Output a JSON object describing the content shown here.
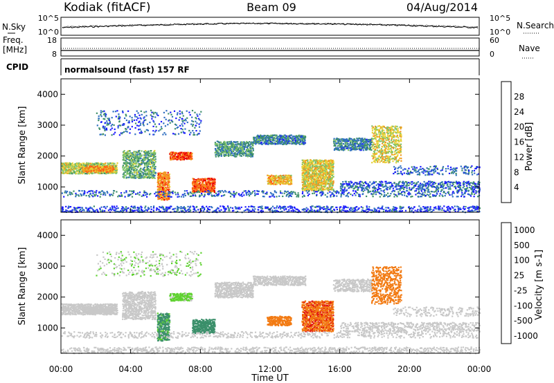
{
  "header": {
    "station": "Kodiak (fitACF)",
    "beam": "Beam 09",
    "date": "04/Aug/2014"
  },
  "noise_panel": {
    "left_label": "N.Sky",
    "right_label": "N.Search",
    "y_ticks_left": [
      "10^5",
      "10^0"
    ],
    "y_ticks_right": [
      "10^5",
      "10^0"
    ]
  },
  "freq_panel": {
    "left_label_1": "Freq.",
    "left_label_2": "[MHz]",
    "right_label": "Nave",
    "y_ticks_left": [
      "18",
      "8"
    ],
    "y_ticks_right": [
      "60",
      "0"
    ]
  },
  "cpid_panel": {
    "label": "CPID",
    "text": "normalsound (fast) 157 RF"
  },
  "chart_data": [
    {
      "type": "heatmap",
      "name": "Power",
      "ylabel": "Slant Range [km]",
      "y_ticks": [
        "1000",
        "2000",
        "3000",
        "4000"
      ],
      "ylim": [
        180,
        4500
      ],
      "colorbar": {
        "label": "Power [dB]",
        "ticks": [
          "4",
          "8",
          "12",
          "16",
          "20",
          "24",
          "28"
        ],
        "range": [
          0,
          32
        ],
        "colors": [
          "#1a1aff",
          "#2f6fc0",
          "#3e8f6a",
          "#7fc36a",
          "#e6d236",
          "#f2961e",
          "#ff5a14",
          "#e80000"
        ]
      }
    },
    {
      "type": "heatmap",
      "name": "Velocity",
      "ylabel": "Slant Range [km]",
      "y_ticks": [
        "1000",
        "2000",
        "3000",
        "4000"
      ],
      "ylim": [
        180,
        4500
      ],
      "colorbar": {
        "label": "Velocity [m s-1]",
        "ticks": [
          "1000",
          "500",
          "100",
          "25",
          "-25",
          "-100",
          "-500",
          "-1000"
        ],
        "colors": [
          "#2a2aff",
          "#2f79b5",
          "#3a8f6a",
          "#5ed12f",
          "#c8c8c8",
          "#f0c020",
          "#f27a12",
          "#e01010"
        ]
      }
    }
  ],
  "xaxis": {
    "label": "Time UT",
    "ticks": [
      "00:00",
      "04:00",
      "08:00",
      "12:00",
      "16:00",
      "20:00",
      "00:00"
    ]
  }
}
